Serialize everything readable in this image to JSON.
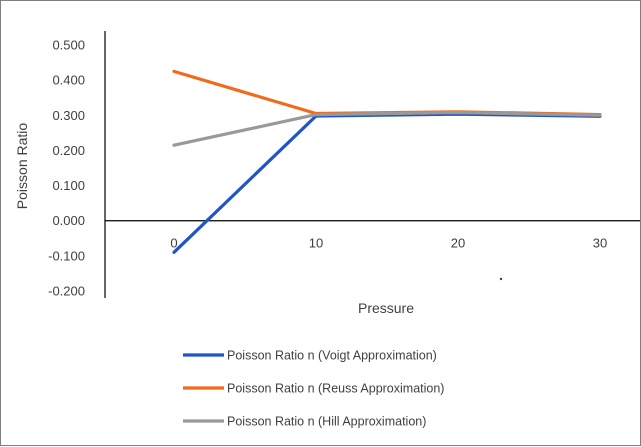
{
  "chart_data": {
    "type": "line",
    "title": "",
    "xlabel": "Pressure",
    "ylabel": "Poisson Ratio",
    "categories": [
      "0",
      "10",
      "20",
      "30"
    ],
    "ylim": [
      -0.2,
      0.5
    ],
    "yticks": [
      "0.500",
      "0.400",
      "0.300",
      "0.200",
      "0.100",
      "0.000",
      "-0.100",
      "-0.200"
    ],
    "grid": false,
    "legend_position": "bottom",
    "series": [
      {
        "name": "Poisson Ratio n (Voigt Approximation)",
        "color": "#1f55c7",
        "values": [
          -0.09,
          0.298,
          0.303,
          0.297
        ]
      },
      {
        "name": "Poisson Ratio n (Reuss Approximation)",
        "color": "#f26a1b",
        "values": [
          0.425,
          0.305,
          0.31,
          0.302
        ]
      },
      {
        "name": "Poisson Ratio n (Hill Approximation)",
        "color": "#999999",
        "values": [
          0.215,
          0.302,
          0.308,
          0.3
        ]
      }
    ]
  }
}
